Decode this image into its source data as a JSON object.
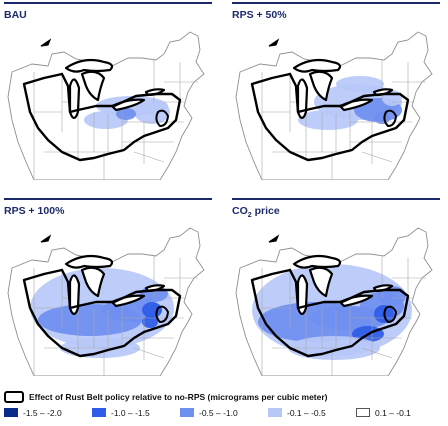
{
  "panels": [
    {
      "label": "BAU",
      "label_sub": "",
      "label_rest": "",
      "intensity": 1
    },
    {
      "label": "RPS + 50%",
      "label_sub": "",
      "label_rest": "",
      "intensity": 2
    },
    {
      "label": "RPS + 100%",
      "label_sub": "",
      "label_rest": "",
      "intensity": 3
    },
    {
      "label": "CO",
      "label_sub": "2",
      "label_rest": " price",
      "intensity": 4
    }
  ],
  "legend": {
    "title": "Effect of Rust Belt policy relative to no-RPS (micrograms per cubic meter)",
    "items": [
      {
        "label": "-1.5 – -2.0",
        "color": "#0a2a8c"
      },
      {
        "label": "-1.0 – -1.5",
        "color": "#2e5be8"
      },
      {
        "label": "-0.5 – -1.0",
        "color": "#6f8ff0"
      },
      {
        "label": "-0.1 – -0.5",
        "color": "#b7c8f8"
      },
      {
        "label": "0.1 – -0.1",
        "color": "#ffffff"
      }
    ]
  },
  "colors": {
    "title": "#1c2a6b",
    "state_lines": "#9a9a9a",
    "rust_belt_outline": "#000000"
  }
}
